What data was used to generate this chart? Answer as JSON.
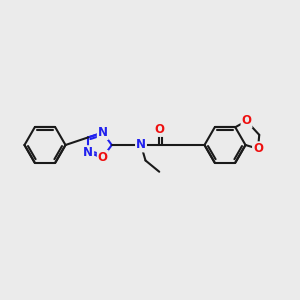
{
  "bg_color": "#ebebeb",
  "bond_color": "#1a1a1a",
  "N_color": "#2020ee",
  "O_color": "#ee1010",
  "line_width": 1.5,
  "font_size": 8.5,
  "xlim": [
    0,
    12
  ],
  "ylim": [
    0,
    10
  ]
}
